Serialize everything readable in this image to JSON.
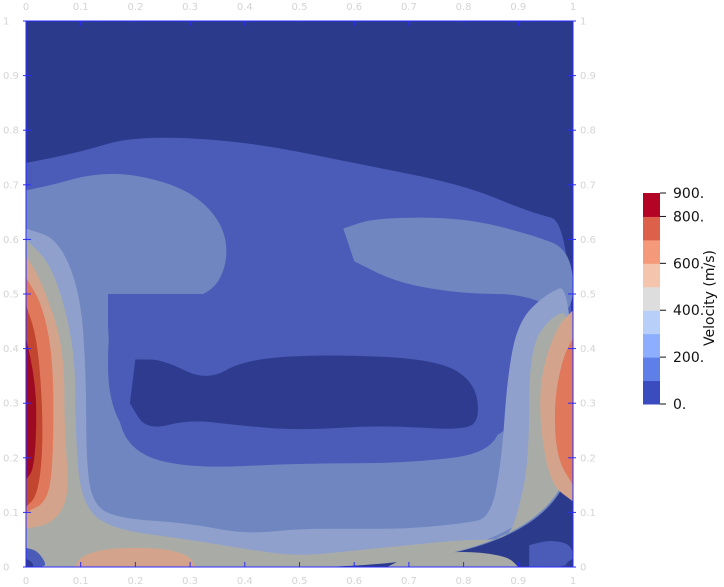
{
  "chart_data": {
    "type": "heatmap",
    "title": "",
    "xlabel": "",
    "ylabel": "",
    "xlim": [
      0,
      1
    ],
    "ylim": [
      0,
      1
    ],
    "x_ticks": [
      "0",
      "0.1",
      "0.2",
      "0.3",
      "0.4",
      "0.5",
      "0.6",
      "0.7",
      "0.8",
      "0.9",
      "1"
    ],
    "y_ticks": [
      "0",
      "0.1",
      "0.2",
      "0.3",
      "0.4",
      "0.5",
      "0.6",
      "0.7",
      "0.8",
      "0.9",
      "1"
    ],
    "colorbar": {
      "title": "Velocity (m/s)",
      "range": [
        0,
        900
      ],
      "levels": [
        0,
        100,
        200,
        300,
        400,
        500,
        600,
        700,
        800,
        900
      ],
      "tick_labels": [
        {
          "value": 900,
          "text": "900."
        },
        {
          "value": 800,
          "text": "800."
        },
        {
          "value": 600,
          "text": "600."
        },
        {
          "value": 400,
          "text": "400."
        },
        {
          "value": 200,
          "text": "200."
        },
        {
          "value": 0,
          "text": "0."
        }
      ],
      "colors": [
        "#3b4cc0",
        "#5f7fe8",
        "#8caefc",
        "#b8d0f9",
        "#dddddd",
        "#f5c4ac",
        "#f49a7b",
        "#dd604b",
        "#b40426"
      ]
    },
    "field": {
      "description_levels": "level index 0..8 maps to colorbar bands (0-100 ... 800-900 m/s)",
      "regions": [
        {
          "level": 1,
          "polygon": [
            [
              0,
              0.74
            ],
            [
              0.1,
              0.76
            ],
            [
              0.2,
              0.79
            ],
            [
              0.4,
              0.78
            ],
            [
              0.6,
              0.74
            ],
            [
              0.8,
              0.7
            ],
            [
              0.92,
              0.65
            ],
            [
              1,
              0.63
            ],
            [
              1,
              0
            ],
            [
              0,
              0
            ]
          ]
        },
        {
          "level": 2,
          "polygon": [
            [
              0,
              0.69
            ],
            [
              0.05,
              0.7
            ],
            [
              0.12,
              0.72
            ],
            [
              0.2,
              0.72
            ],
            [
              0.3,
              0.69
            ],
            [
              0.36,
              0.63
            ],
            [
              0.37,
              0.56
            ],
            [
              0.34,
              0.5
            ],
            [
              0.25,
              0.48
            ],
            [
              0.17,
              0.49
            ],
            [
              0.15,
              0.44
            ],
            [
              0.15,
              0.3
            ],
            [
              0.2,
              0.22
            ],
            [
              0.4,
              0.2
            ],
            [
              0.6,
              0.2
            ],
            [
              0.85,
              0.22
            ],
            [
              0.92,
              0.3
            ],
            [
              0.95,
              0.4
            ],
            [
              0.98,
              0.44
            ],
            [
              1,
              0.45
            ],
            [
              1,
              0
            ],
            [
              0,
              0
            ]
          ]
        },
        {
          "level": 2,
          "polygon": [
            [
              0.58,
              0.62
            ],
            [
              0.64,
              0.64
            ],
            [
              0.8,
              0.64
            ],
            [
              0.92,
              0.61
            ],
            [
              1,
              0.58
            ],
            [
              1,
              0.45
            ],
            [
              0.92,
              0.5
            ],
            [
              0.8,
              0.5
            ],
            [
              0.68,
              0.52
            ],
            [
              0.6,
              0.56
            ]
          ]
        },
        {
          "level": 1,
          "polygon": [
            [
              0.15,
              0.5
            ],
            [
              0.3,
              0.5
            ],
            [
              0.38,
              0.5
            ],
            [
              0.45,
              0.49
            ],
            [
              0.6,
              0.5
            ],
            [
              0.8,
              0.49
            ],
            [
              0.85,
              0.46
            ],
            [
              0.87,
              0.3
            ],
            [
              0.86,
              0.21
            ],
            [
              0.7,
              0.19
            ],
            [
              0.5,
              0.19
            ],
            [
              0.3,
              0.18
            ],
            [
              0.19,
              0.21
            ],
            [
              0.16,
              0.3
            ],
            [
              0.15,
              0.44
            ]
          ]
        },
        {
          "level": 0,
          "polygon": [
            [
              0.2,
              0.38
            ],
            [
              0.25,
              0.38
            ],
            [
              0.33,
              0.34
            ],
            [
              0.4,
              0.38
            ],
            [
              0.55,
              0.39
            ],
            [
              0.75,
              0.38
            ],
            [
              0.82,
              0.34
            ],
            [
              0.83,
              0.27
            ],
            [
              0.8,
              0.25
            ],
            [
              0.65,
              0.26
            ],
            [
              0.5,
              0.25
            ],
            [
              0.38,
              0.26
            ],
            [
              0.3,
              0.27
            ],
            [
              0.22,
              0.25
            ],
            [
              0.19,
              0.3
            ]
          ]
        },
        {
          "level": 3,
          "polygon": [
            [
              0,
              0.62
            ],
            [
              0.06,
              0.6
            ],
            [
              0.1,
              0.5
            ],
            [
              0.11,
              0.35
            ],
            [
              0.11,
              0.2
            ],
            [
              0.12,
              0.12
            ],
            [
              0.16,
              0.09
            ],
            [
              0.3,
              0.08
            ],
            [
              0.4,
              0.06
            ],
            [
              0.5,
              0.07
            ],
            [
              0.6,
              0.07
            ],
            [
              0.7,
              0.07
            ],
            [
              0.8,
              0.08
            ],
            [
              0.85,
              0.09
            ],
            [
              0.87,
              0.2
            ],
            [
              0.88,
              0.35
            ],
            [
              0.9,
              0.45
            ],
            [
              0.95,
              0.5
            ],
            [
              1,
              0.52
            ],
            [
              1,
              0
            ],
            [
              0,
              0
            ]
          ]
        },
        {
          "level": 4,
          "polygon": [
            [
              0,
              0.6
            ],
            [
              0.05,
              0.55
            ],
            [
              0.09,
              0.4
            ],
            [
              0.09,
              0.25
            ],
            [
              0.1,
              0.12
            ],
            [
              0.15,
              0.07
            ],
            [
              0.3,
              0.05
            ],
            [
              0.42,
              0.03
            ],
            [
              0.5,
              0.02
            ],
            [
              0.6,
              0.03
            ],
            [
              0.7,
              0.04
            ],
            [
              0.8,
              0.05
            ],
            [
              0.88,
              0.05
            ],
            [
              0.9,
              0.1
            ],
            [
              0.92,
              0.2
            ],
            [
              0.92,
              0.4
            ],
            [
              0.96,
              0.46
            ],
            [
              1,
              0.47
            ],
            [
              1,
              0
            ],
            [
              0,
              0
            ]
          ]
        },
        {
          "level": 5,
          "polygon": [
            [
              0,
              0.57
            ],
            [
              0.03,
              0.52
            ],
            [
              0.07,
              0.4
            ],
            [
              0.07,
              0.25
            ],
            [
              0.08,
              0.13
            ],
            [
              0.05,
              0.08
            ],
            [
              0,
              0.07
            ]
          ]
        },
        {
          "level": 6,
          "polygon": [
            [
              0,
              0.53
            ],
            [
              0.03,
              0.48
            ],
            [
              0.05,
              0.38
            ],
            [
              0.05,
              0.2
            ],
            [
              0.04,
              0.12
            ],
            [
              0,
              0.1
            ]
          ]
        },
        {
          "level": 7,
          "polygon": [
            [
              0,
              0.48
            ],
            [
              0.02,
              0.42
            ],
            [
              0.03,
              0.3
            ],
            [
              0.03,
              0.2
            ],
            [
              0.02,
              0.13
            ],
            [
              0,
              0.11
            ]
          ]
        },
        {
          "level": 8,
          "polygon": [
            [
              0,
              0.42
            ],
            [
              0.015,
              0.35
            ],
            [
              0.02,
              0.28
            ],
            [
              0.015,
              0.18
            ],
            [
              0,
              0.16
            ]
          ]
        },
        {
          "level": 5,
          "polygon": [
            [
              1,
              0.47
            ],
            [
              0.97,
              0.44
            ],
            [
              0.94,
              0.35
            ],
            [
              0.94,
              0.25
            ],
            [
              0.96,
              0.15
            ],
            [
              1,
              0.12
            ]
          ]
        },
        {
          "level": 6,
          "polygon": [
            [
              1,
              0.42
            ],
            [
              0.98,
              0.38
            ],
            [
              0.965,
              0.3
            ],
            [
              0.97,
              0.2
            ],
            [
              1,
              0.15
            ]
          ]
        },
        {
          "level": 5,
          "polygon": [
            [
              0.09,
              0
            ],
            [
              0.1,
              0.02
            ],
            [
              0.15,
              0.035
            ],
            [
              0.25,
              0.035
            ],
            [
              0.3,
              0.02
            ],
            [
              0.31,
              0
            ]
          ]
        },
        {
          "level": 4,
          "polygon": [
            [
              0.66,
              0
            ],
            [
              0.7,
              0.02
            ],
            [
              0.8,
              0.03
            ],
            [
              0.88,
              0.02
            ],
            [
              0.9,
              0
            ]
          ]
        },
        {
          "level": 1,
          "polygon": [
            [
              0.92,
              0.04
            ],
            [
              0.96,
              0.05
            ],
            [
              1,
              0.04
            ],
            [
              1,
              0
            ],
            [
              0.92,
              0
            ]
          ]
        },
        {
          "level": 1,
          "polygon": [
            [
              0,
              0.035
            ],
            [
              0.02,
              0.03
            ],
            [
              0.035,
              0.01
            ],
            [
              0.035,
              0
            ],
            [
              0,
              0
            ]
          ]
        },
        {
          "level": 0,
          "polygon": [
            [
              0,
              0.015
            ],
            [
              0.01,
              0.01
            ],
            [
              0.015,
              0
            ],
            [
              0,
              0
            ]
          ]
        },
        {
          "level": 0,
          "polygon": [
            [
              1,
              0.015
            ],
            [
              0.99,
              0.01
            ],
            [
              0.985,
              0
            ],
            [
              1,
              0
            ]
          ]
        }
      ],
      "background_level": 0
    }
  }
}
